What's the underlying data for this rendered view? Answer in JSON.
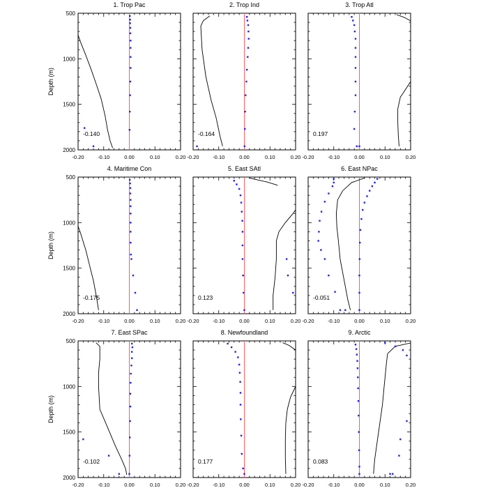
{
  "chart_data": [
    {
      "type": "line",
      "title": "1. Trop Pac",
      "ylabel": "Depth (m)",
      "xlim": [
        -0.2,
        0.2
      ],
      "ylim": [
        2000,
        500
      ],
      "x_ticks": [
        "-0.20",
        "-0.10",
        "0.00",
        "0.10",
        "0.20"
      ],
      "y_ticks": [
        "500",
        "1000",
        "1500",
        "2000"
      ],
      "annotation": "-0.140",
      "line": {
        "x": [
          -0.205,
          -0.19,
          -0.17,
          -0.15,
          -0.13,
          -0.11,
          -0.095,
          -0.085,
          -0.075,
          -0.065
        ],
        "depth": [
          700,
          820,
          960,
          1110,
          1270,
          1440,
          1620,
          1780,
          1900,
          1980
        ]
      },
      "dots": {
        "x": [
          0.002,
          0.003,
          0.003,
          0.004,
          0.004,
          0.005,
          0.005,
          0.005,
          0.005,
          0.004,
          0.003,
          0.002,
          0.001,
          -0.175,
          -0.14
        ],
        "depth": [
          530,
          570,
          610,
          660,
          720,
          800,
          880,
          980,
          1100,
          1250,
          1400,
          1580,
          1780,
          1760,
          1960
        ]
      }
    },
    {
      "type": "line",
      "title": "2. Trop Ind",
      "ylabel": "",
      "xlim": [
        -0.2,
        0.2
      ],
      "ylim": [
        2000,
        500
      ],
      "x_ticks": [
        "-0.20",
        "-0.10",
        "0.00",
        "0.10",
        "0.20"
      ],
      "y_ticks": [
        "500",
        "1000",
        "1500",
        "2000"
      ],
      "annotation": "-0.164",
      "line": {
        "x": [
          -0.135,
          -0.16,
          -0.17,
          -0.165,
          -0.15,
          -0.13,
          -0.11,
          -0.095,
          -0.085
        ],
        "depth": [
          530,
          580,
          640,
          900,
          1200,
          1450,
          1650,
          1850,
          1960
        ]
      },
      "dots": {
        "x": [
          0.01,
          0.012,
          0.015,
          0.016,
          0.017,
          0.015,
          0.013,
          0.01,
          0.008,
          0.005,
          0.003,
          0.002,
          0.001,
          -0.185
        ],
        "depth": [
          540,
          580,
          630,
          700,
          780,
          880,
          980,
          1120,
          1250,
          1400,
          1580,
          1770,
          1960,
          1960
        ]
      }
    },
    {
      "type": "line",
      "title": "3. Trop Atl",
      "ylabel": "",
      "xlim": [
        -0.2,
        0.2
      ],
      "ylim": [
        2000,
        500
      ],
      "x_ticks": [
        "-0.20",
        "-0.10",
        "0.00",
        "0.10",
        "0.20"
      ],
      "y_ticks": [
        "500",
        "1000",
        "1500",
        "2000"
      ],
      "annotation": "0.197",
      "line": {
        "x": [
          0.23,
          0.2,
          0.17,
          0.16,
          0.15,
          0.15,
          0.152,
          0.155
        ],
        "depth": [
          1200,
          1250,
          1380,
          1420,
          1550,
          1700,
          1850,
          1960
        ]
      },
      "line2": {
        "x": [
          0.145,
          0.175,
          0.205
        ],
        "depth": [
          515,
          545,
          590
        ]
      },
      "dots": {
        "x": [
          -0.03,
          -0.025,
          -0.02,
          -0.018,
          -0.015,
          -0.015,
          -0.015,
          -0.015,
          -0.015,
          -0.015,
          -0.018,
          -0.02,
          -0.01,
          0.0
        ],
        "depth": [
          540,
          580,
          630,
          700,
          780,
          880,
          980,
          1100,
          1250,
          1400,
          1580,
          1770,
          1960,
          1960
        ]
      }
    },
    {
      "type": "line",
      "title": "4. Maritime Con",
      "ylabel": "Depth (m)",
      "xlim": [
        -0.2,
        0.2
      ],
      "ylim": [
        2000,
        500
      ],
      "x_ticks": [
        "-0.20",
        "-0.10",
        "0.00",
        "0.10",
        "0.20"
      ],
      "y_ticks": [
        "500",
        "1000",
        "1500",
        "2000"
      ],
      "annotation": "-0.175",
      "line": {
        "x": [
          -0.205,
          -0.19,
          -0.17,
          -0.155,
          -0.14,
          -0.128,
          -0.12
        ],
        "depth": [
          1000,
          1120,
          1300,
          1470,
          1640,
          1820,
          1960
        ]
      },
      "dots": {
        "x": [
          0.002,
          0.003,
          0.004,
          0.004,
          0.005,
          0.005,
          0.005,
          0.005,
          0.005,
          0.005,
          0.006,
          0.008,
          0.015,
          0.023,
          0.03
        ],
        "depth": [
          530,
          570,
          620,
          680,
          750,
          820,
          900,
          1000,
          1100,
          1220,
          1350,
          1400,
          1580,
          1770,
          1960
        ]
      }
    },
    {
      "type": "line",
      "title": "5. East SAtl",
      "ylabel": "",
      "xlim": [
        -0.2,
        0.2
      ],
      "ylim": [
        2000,
        500
      ],
      "x_ticks": [
        "-0.20",
        "-0.10",
        "0.00",
        "0.10",
        "0.20"
      ],
      "y_ticks": [
        "500",
        "1000",
        "1500",
        "2000"
      ],
      "annotation": "0.123",
      "line": {
        "x": [
          0.2,
          0.215,
          0.22,
          0.215,
          0.19,
          0.16,
          0.135,
          0.125,
          0.125,
          0.12,
          0.112,
          0.112
        ],
        "depth": [
          560,
          640,
          720,
          800,
          900,
          1000,
          1100,
          1200,
          1400,
          1600,
          1800,
          1960
        ]
      },
      "line2": {
        "x": [
          0.02,
          0.05,
          0.09,
          0.13
        ],
        "depth": [
          510,
          530,
          555,
          590
        ]
      },
      "dots": {
        "x": [
          -0.04,
          -0.03,
          -0.02,
          -0.015,
          -0.012,
          -0.01,
          -0.008,
          -0.007,
          -0.007,
          -0.007,
          -0.005,
          -0.003,
          0.0,
          0.165,
          0.17,
          0.19
        ],
        "depth": [
          540,
          580,
          630,
          700,
          780,
          880,
          980,
          1100,
          1250,
          1400,
          1580,
          1770,
          1960,
          1400,
          1580,
          1770
        ]
      }
    },
    {
      "type": "line",
      "title": "6. East NPac",
      "ylabel": "",
      "xlim": [
        -0.2,
        0.2
      ],
      "ylim": [
        2000,
        500
      ],
      "x_ticks": [
        "-0.20",
        "-0.10",
        "0.00",
        "0.10",
        "0.20"
      ],
      "y_ticks": [
        "500",
        "1000",
        "1500",
        "2000"
      ],
      "annotation": "-0.051",
      "line": {
        "x": [
          0.02,
          -0.03,
          -0.065,
          -0.085,
          -0.09,
          -0.088,
          -0.082,
          -0.075,
          -0.065,
          -0.055,
          -0.045,
          -0.035
        ],
        "depth": [
          510,
          560,
          650,
          750,
          900,
          1050,
          1200,
          1400,
          1550,
          1700,
          1850,
          1960
        ]
      },
      "dots_a": {
        "x": [
          -0.1,
          -0.1,
          -0.105,
          -0.12,
          -0.135,
          -0.148,
          -0.155,
          -0.158,
          -0.16,
          -0.15,
          -0.135,
          -0.12,
          -0.095,
          -0.075,
          -0.055
        ],
        "depth": [
          520,
          560,
          600,
          680,
          770,
          880,
          980,
          1100,
          1200,
          1300,
          1400,
          1580,
          1760,
          1960,
          1960
        ]
      },
      "dots": {
        "x": [
          0.07,
          0.06,
          0.05,
          0.04,
          0.03,
          0.02,
          0.013,
          0.008,
          0.004,
          0.002,
          0.001,
          0.0,
          0.0,
          0.0
        ],
        "depth": [
          520,
          560,
          600,
          650,
          710,
          780,
          860,
          960,
          1080,
          1220,
          1400,
          1580,
          1770,
          1960
        ]
      }
    },
    {
      "type": "line",
      "title": "7. East SPac",
      "ylabel": "Depth (m)",
      "xlim": [
        -0.2,
        0.2
      ],
      "ylim": [
        2000,
        500
      ],
      "x_ticks": [
        "-0.20",
        "-0.10",
        "0.00",
        "0.10",
        "0.20"
      ],
      "y_ticks": [
        "500",
        "1000",
        "1500",
        "2000"
      ],
      "annotation": "-0.102",
      "line": {
        "x": [
          -0.13,
          -0.115,
          -0.115,
          -0.12,
          -0.12,
          -0.115,
          -0.085,
          -0.055,
          -0.03,
          -0.015,
          -0.01
        ],
        "depth": [
          520,
          560,
          700,
          850,
          1000,
          1250,
          1450,
          1650,
          1800,
          1900,
          1970
        ]
      },
      "dots": {
        "x": [
          0.01,
          0.012,
          0.01,
          0.01,
          0.008,
          0.006,
          0.005,
          0.004,
          0.004,
          0.003,
          0.002,
          0.001,
          0.0,
          -0.18,
          -0.08,
          -0.04
        ],
        "depth": [
          530,
          570,
          620,
          690,
          770,
          860,
          960,
          1080,
          1220,
          1380,
          1560,
          1760,
          1960,
          1580,
          1760,
          1960
        ]
      }
    },
    {
      "type": "line",
      "title": "8. Newfoundland",
      "ylabel": "",
      "xlim": [
        -0.2,
        0.2
      ],
      "ylim": [
        2000,
        500
      ],
      "x_ticks": [
        "-0.20",
        "-0.10",
        "0.00",
        "0.10",
        "0.20"
      ],
      "y_ticks": [
        "500",
        "1000",
        "1500",
        "2000"
      ],
      "annotation": "0.177",
      "line": {
        "x": [
          0.23,
          0.2,
          0.18,
          0.168,
          0.162,
          0.16,
          0.16,
          0.162
        ],
        "depth": [
          900,
          1000,
          1120,
          1250,
          1400,
          1580,
          1780,
          1960
        ]
      },
      "line2": {
        "x": [
          0.15,
          0.175,
          0.2
        ],
        "depth": [
          520,
          550,
          600
        ]
      },
      "dots": {
        "x": [
          -0.065,
          -0.05,
          -0.035,
          -0.025,
          -0.02,
          -0.018,
          -0.016,
          -0.015,
          -0.015,
          -0.014,
          -0.012,
          -0.01,
          -0.005,
          0.0
        ],
        "depth": [
          530,
          570,
          620,
          680,
          760,
          850,
          950,
          1070,
          1200,
          1360,
          1540,
          1740,
          1900,
          1960
        ]
      }
    },
    {
      "type": "line",
      "title": "9. Arctic",
      "ylabel": "",
      "xlim": [
        -0.2,
        0.2
      ],
      "ylim": [
        2000,
        500
      ],
      "x_ticks": [
        "-0.20",
        "-0.10",
        "0.00",
        "0.10",
        "0.20"
      ],
      "y_ticks": [
        "500",
        "1000",
        "1500",
        "2000"
      ],
      "annotation": "0.083",
      "line": {
        "x": [
          0.22,
          0.14,
          0.11,
          0.105,
          0.1,
          0.095,
          0.09,
          0.08,
          0.07,
          0.06,
          0.055
        ],
        "depth": [
          510,
          560,
          640,
          760,
          900,
          1050,
          1200,
          1400,
          1600,
          1800,
          1960
        ]
      },
      "dots_a": {
        "x": [
          0.1,
          0.14,
          0.17,
          0.185,
          0.185,
          0.16,
          0.155,
          0.13,
          0.12
        ],
        "depth": [
          520,
          560,
          600,
          660,
          1380,
          1580,
          1760,
          1960,
          1960
        ]
      },
      "dots": {
        "x": [
          -0.015,
          -0.012,
          -0.01,
          -0.008,
          -0.007,
          -0.006,
          -0.005,
          -0.004,
          -0.003,
          -0.002,
          -0.001,
          0.0,
          0.0
        ],
        "depth": [
          540,
          590,
          650,
          720,
          800,
          900,
          1020,
          1160,
          1320,
          1500,
          1700,
          1880,
          1960
        ]
      }
    }
  ]
}
